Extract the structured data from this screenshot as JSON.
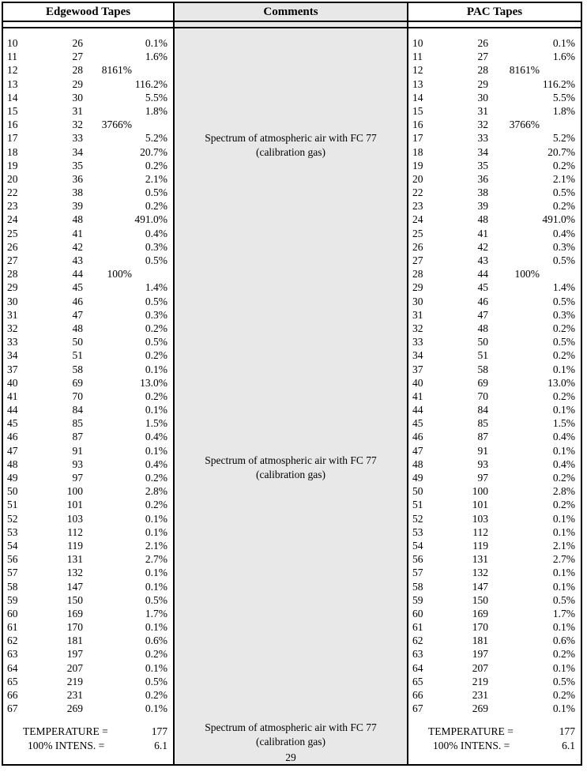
{
  "document": {
    "columns": {
      "left": {
        "title": "Edgewood Tapes"
      },
      "middle": {
        "title": "Comments"
      },
      "right": {
        "title": "PAC Tapes"
      }
    },
    "comment_text": {
      "line1": "Spectrum of atmospheric air with FC 77",
      "line2": "(calibration gas)"
    },
    "page_number": "29",
    "rows": [
      [
        "10",
        "26",
        "0.1%",
        0
      ],
      [
        "11",
        "27",
        "1.6%",
        0
      ],
      [
        "12",
        "28",
        "8161%",
        1
      ],
      [
        "13",
        "29",
        "116.2%",
        0
      ],
      [
        "14",
        "30",
        "5.5%",
        0
      ],
      [
        "15",
        "31",
        "1.8%",
        0
      ],
      [
        "16",
        "32",
        "3766%",
        1
      ],
      [
        "17",
        "33",
        "5.2%",
        0
      ],
      [
        "18",
        "34",
        "20.7%",
        0
      ],
      [
        "19",
        "35",
        "0.2%",
        0
      ],
      [
        "20",
        "36",
        "2.1%",
        0
      ],
      [
        "22",
        "38",
        "0.5%",
        0
      ],
      [
        "23",
        "39",
        "0.2%",
        0
      ],
      [
        "24",
        "48",
        "491.0%",
        0
      ],
      [
        "25",
        "41",
        "0.4%",
        0
      ],
      [
        "26",
        "42",
        "0.3%",
        0
      ],
      [
        "27",
        "43",
        "0.5%",
        0
      ],
      [
        "28",
        "44",
        "100%",
        1
      ],
      [
        "29",
        "45",
        "1.4%",
        0
      ],
      [
        "30",
        "46",
        "0.5%",
        0
      ],
      [
        "31",
        "47",
        "0.3%",
        0
      ],
      [
        "32",
        "48",
        "0.2%",
        0
      ],
      [
        "33",
        "50",
        "0.5%",
        0
      ],
      [
        "34",
        "51",
        "0.2%",
        0
      ],
      [
        "37",
        "58",
        "0.1%",
        0
      ],
      [
        "40",
        "69",
        "13.0%",
        0
      ],
      [
        "41",
        "70",
        "0.2%",
        0
      ],
      [
        "44",
        "84",
        "0.1%",
        0
      ],
      [
        "45",
        "85",
        "1.5%",
        0
      ],
      [
        "46",
        "87",
        "0.4%",
        0
      ],
      [
        "47",
        "91",
        "0.1%",
        0
      ],
      [
        "48",
        "93",
        "0.4%",
        0
      ],
      [
        "49",
        "97",
        "0.2%",
        0
      ],
      [
        "50",
        "100",
        "2.8%",
        0
      ],
      [
        "51",
        "101",
        "0.2%",
        0
      ],
      [
        "52",
        "103",
        "0.1%",
        0
      ],
      [
        "53",
        "112",
        "0.1%",
        0
      ],
      [
        "54",
        "119",
        "2.1%",
        0
      ],
      [
        "56",
        "131",
        "2.7%",
        0
      ],
      [
        "57",
        "132",
        "0.1%",
        0
      ],
      [
        "58",
        "147",
        "0.1%",
        0
      ],
      [
        "59",
        "150",
        "0.5%",
        0
      ],
      [
        "60",
        "169",
        "1.7%",
        0
      ],
      [
        "61",
        "170",
        "0.1%",
        0
      ],
      [
        "62",
        "181",
        "0.6%",
        0
      ],
      [
        "63",
        "197",
        "0.2%",
        0
      ],
      [
        "64",
        "207",
        "0.1%",
        0
      ],
      [
        "65",
        "219",
        "0.5%",
        0
      ],
      [
        "66",
        "231",
        "0.2%",
        0
      ],
      [
        "67",
        "269",
        "0.1%",
        0
      ]
    ],
    "footer": [
      {
        "label": "TEMPERATURE =",
        "value": "177"
      },
      {
        "label": "100% INTENS. =",
        "value": "6.1"
      }
    ],
    "colors": {
      "comments_bg": "#e8e8e8",
      "border": "#000000"
    }
  }
}
